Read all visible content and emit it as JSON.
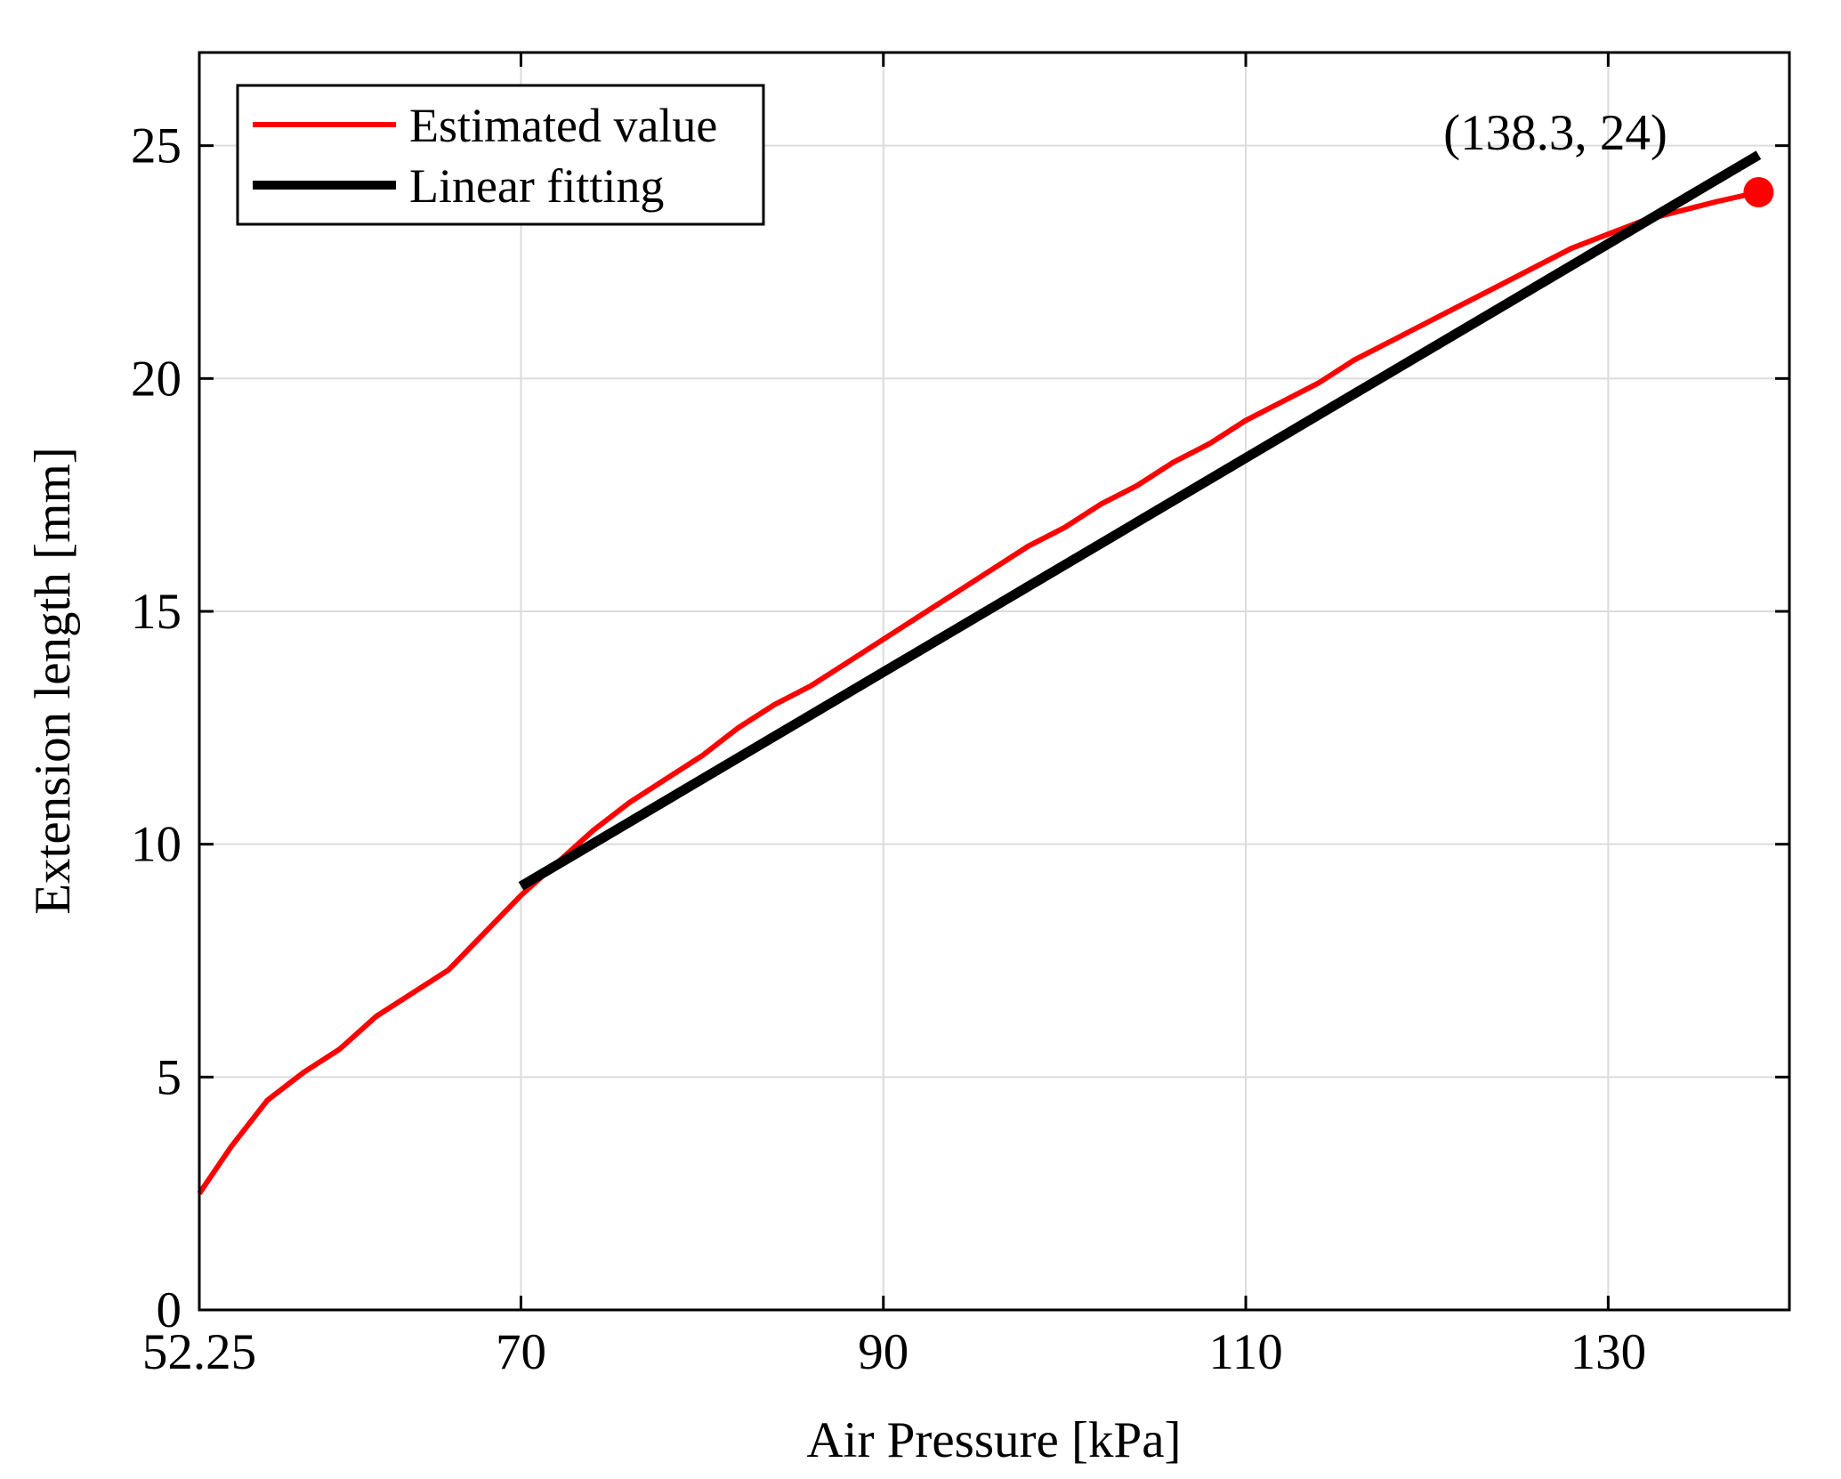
{
  "chart_data": {
    "type": "line",
    "xlabel": "Air Pressure [kPa]",
    "ylabel": "Extension length [mm]",
    "xlim": [
      52.25,
      140
    ],
    "ylim": [
      0,
      27
    ],
    "xticks": [
      52.25,
      70,
      90,
      110,
      130
    ],
    "xtick_labels": [
      "52.25",
      "70",
      "90",
      "110",
      "130"
    ],
    "yticks": [
      0,
      5,
      10,
      15,
      20,
      25
    ],
    "ytick_labels": [
      "0",
      "5",
      "10",
      "15",
      "20",
      "25"
    ],
    "grid": true,
    "legend": {
      "location": "top-left",
      "entries": [
        "Estimated value",
        "Linear fitting"
      ]
    },
    "series": [
      {
        "name": "Estimated value",
        "color": "#ff0000",
        "x": [
          52.25,
          54,
          56,
          58,
          60,
          62,
          64,
          66,
          68,
          70,
          72,
          74,
          76,
          78,
          80,
          82,
          84,
          86,
          88,
          90,
          92,
          94,
          96,
          98,
          100,
          102,
          104,
          106,
          108,
          110,
          112,
          114,
          116,
          118,
          120,
          122,
          124,
          126,
          128,
          130,
          132,
          134,
          136,
          138.3
        ],
        "y": [
          2.5,
          3.5,
          4.5,
          5.1,
          5.6,
          6.3,
          6.8,
          7.3,
          8.1,
          8.9,
          9.6,
          10.3,
          10.9,
          11.4,
          11.9,
          12.5,
          13.0,
          13.4,
          13.9,
          14.4,
          14.9,
          15.4,
          15.9,
          16.4,
          16.8,
          17.3,
          17.7,
          18.2,
          18.6,
          19.1,
          19.5,
          19.9,
          20.4,
          20.8,
          21.2,
          21.6,
          22.0,
          22.4,
          22.8,
          23.1,
          23.4,
          23.6,
          23.8,
          24.0
        ]
      },
      {
        "name": "Linear fitting",
        "color": "#000000",
        "x": [
          70,
          138.3
        ],
        "y": [
          9.1,
          24.8
        ]
      }
    ],
    "marker": {
      "x": 138.3,
      "y": 24,
      "color": "#ff0000"
    },
    "annotation": {
      "text": "(138.3, 24)",
      "x": 138.3,
      "y": 24
    }
  }
}
